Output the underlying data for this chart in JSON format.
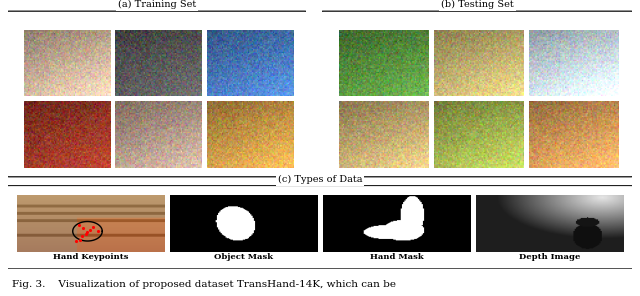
{
  "fig_width": 6.4,
  "fig_height": 2.96,
  "dpi": 100,
  "background_color": "#ffffff",
  "panel_a_title": "(a) Training Set",
  "panel_b_title": "(b) Testing Set",
  "panel_c_title": "(c) Types of Data",
  "panel_c_labels": [
    "Hand Keypoints",
    "Object Mask",
    "Hand Mask",
    "Depth Image"
  ],
  "caption": "Fig. 3.    Visualization of proposed dataset TransHand-14K, which can be",
  "label_fontsize": 6.0,
  "title_fontsize": 7.0,
  "caption_fontsize": 7.5,
  "train_colors": [
    [
      "#d8c0a0",
      "#606060",
      "#5090c0"
    ],
    [
      "#a04030",
      "#c0a090",
      "#d0a060"
    ]
  ],
  "test_colors": [
    [
      "#609040",
      "#c0b080",
      "#d0e0e8"
    ],
    [
      "#c0a880",
      "#b0c080",
      "#d0a870"
    ]
  ]
}
